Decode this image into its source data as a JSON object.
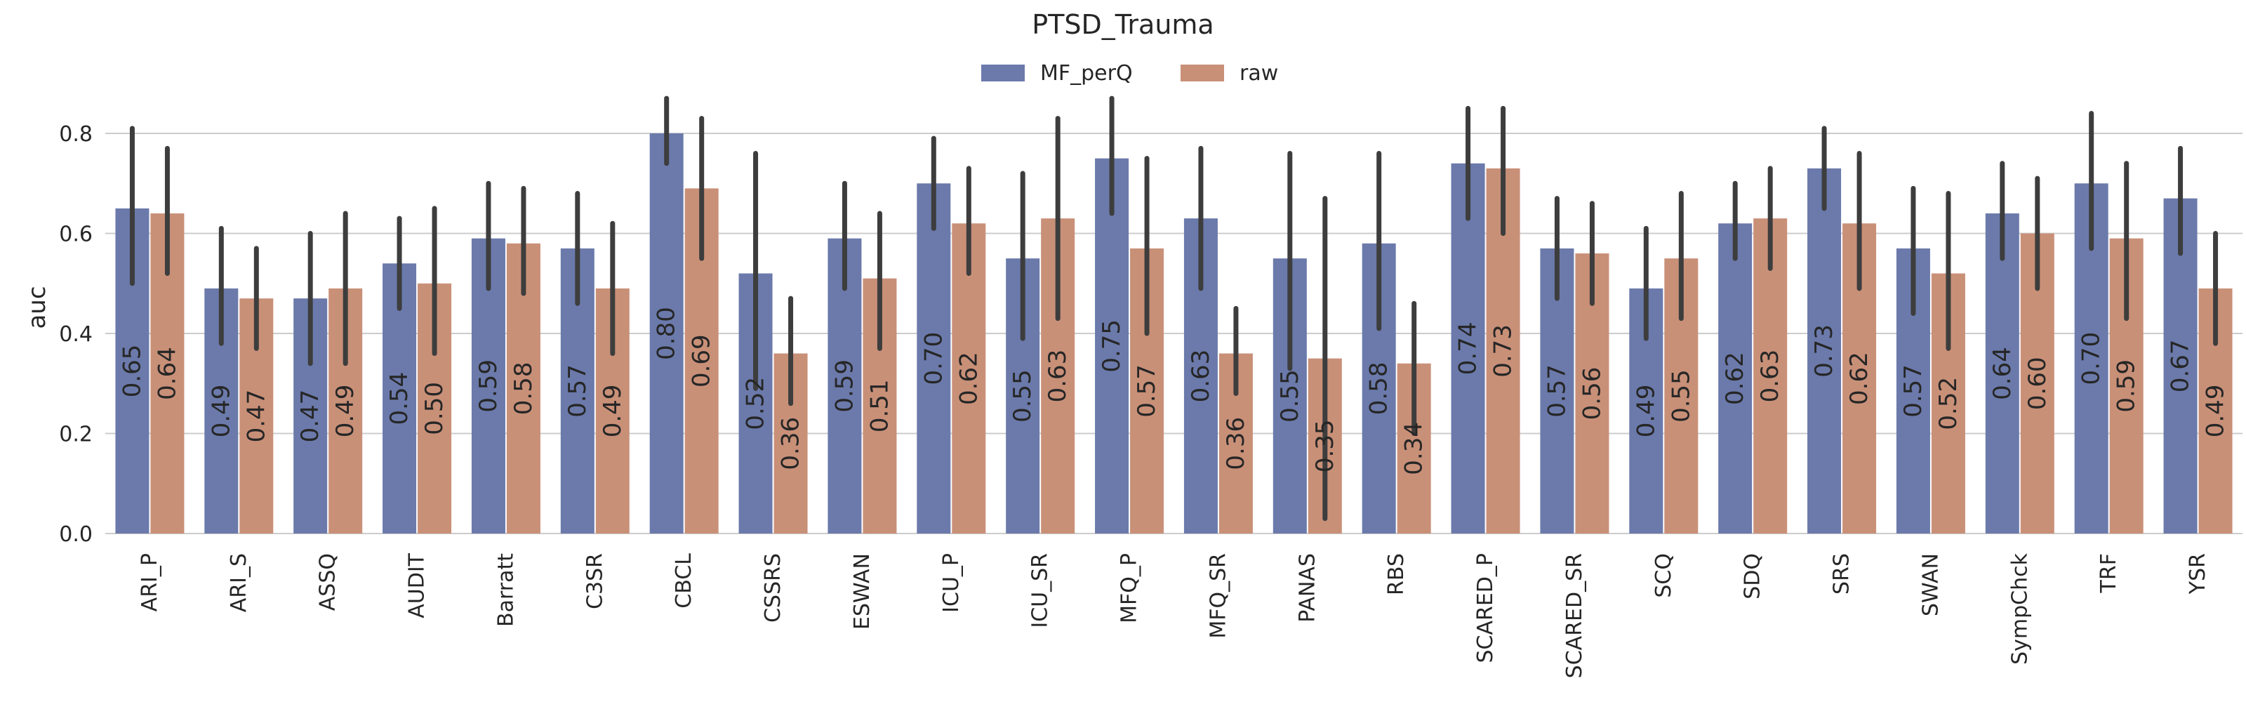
{
  "chart_data": {
    "type": "bar",
    "title": "PTSD_Trauma",
    "xlabel": "",
    "ylabel": "auc",
    "ylim": [
      0,
      0.9
    ],
    "yticks": [
      "0.0",
      "0.2",
      "0.4",
      "0.6",
      "0.8"
    ],
    "grid": true,
    "legend_position": "top-center",
    "categories": [
      "ARI_P",
      "ARI_S",
      "ASSQ",
      "AUDIT",
      "Barratt",
      "C3SR",
      "CBCL",
      "CSSRS",
      "ESWAN",
      "ICU_P",
      "ICU_SR",
      "MFQ_P",
      "MFQ_SR",
      "PANAS",
      "RBS",
      "SCARED_P",
      "SCARED_SR",
      "SCQ",
      "SDQ",
      "SRS",
      "SWAN",
      "SympChck",
      "TRF",
      "YSR"
    ],
    "series": [
      {
        "name": "MF_perQ",
        "color": "#6b7aab",
        "values": [
          0.65,
          0.49,
          0.47,
          0.54,
          0.59,
          0.57,
          0.8,
          0.52,
          0.59,
          0.7,
          0.55,
          0.75,
          0.63,
          0.55,
          0.58,
          0.74,
          0.57,
          0.49,
          0.62,
          0.73,
          0.57,
          0.64,
          0.7,
          0.67
        ],
        "labels": [
          "0.65",
          "0.49",
          "0.47",
          "0.54",
          "0.59",
          "0.57",
          "0.80",
          "0.52",
          "0.59",
          "0.70",
          "0.55",
          "0.75",
          "0.63",
          "0.55",
          "0.58",
          "0.74",
          "0.57",
          "0.49",
          "0.62",
          "0.73",
          "0.57",
          "0.64",
          "0.70",
          "0.67"
        ],
        "ci": [
          [
            0.5,
            0.81
          ],
          [
            0.38,
            0.61
          ],
          [
            0.34,
            0.6
          ],
          [
            0.45,
            0.63
          ],
          [
            0.49,
            0.7
          ],
          [
            0.46,
            0.68
          ],
          [
            0.74,
            0.87
          ],
          [
            0.29,
            0.76
          ],
          [
            0.49,
            0.7
          ],
          [
            0.61,
            0.79
          ],
          [
            0.39,
            0.72
          ],
          [
            0.64,
            0.87
          ],
          [
            0.49,
            0.77
          ],
          [
            0.33,
            0.76
          ],
          [
            0.41,
            0.76
          ],
          [
            0.63,
            0.85
          ],
          [
            0.47,
            0.67
          ],
          [
            0.39,
            0.61
          ],
          [
            0.55,
            0.7
          ],
          [
            0.65,
            0.81
          ],
          [
            0.44,
            0.69
          ],
          [
            0.55,
            0.74
          ],
          [
            0.57,
            0.84
          ],
          [
            0.56,
            0.77
          ]
        ]
      },
      {
        "name": "raw",
        "color": "#c99078",
        "values": [
          0.64,
          0.47,
          0.49,
          0.5,
          0.58,
          0.49,
          0.69,
          0.36,
          0.51,
          0.62,
          0.63,
          0.57,
          0.36,
          0.35,
          0.34,
          0.73,
          0.56,
          0.55,
          0.63,
          0.62,
          0.52,
          0.6,
          0.59,
          0.49
        ],
        "labels": [
          "0.64",
          "0.47",
          "0.49",
          "0.50",
          "0.58",
          "0.49",
          "0.69",
          "0.36",
          "0.51",
          "0.62",
          "0.63",
          "0.57",
          "0.36",
          "0.35",
          "0.34",
          "0.73",
          "0.56",
          "0.55",
          "0.63",
          "0.62",
          "0.52",
          "0.60",
          "0.59",
          "0.49"
        ],
        "ci": [
          [
            0.52,
            0.77
          ],
          [
            0.37,
            0.57
          ],
          [
            0.34,
            0.64
          ],
          [
            0.36,
            0.65
          ],
          [
            0.48,
            0.69
          ],
          [
            0.36,
            0.62
          ],
          [
            0.55,
            0.83
          ],
          [
            0.26,
            0.47
          ],
          [
            0.37,
            0.64
          ],
          [
            0.52,
            0.73
          ],
          [
            0.43,
            0.83
          ],
          [
            0.4,
            0.75
          ],
          [
            0.28,
            0.45
          ],
          [
            0.03,
            0.67
          ],
          [
            0.2,
            0.46
          ],
          [
            0.6,
            0.85
          ],
          [
            0.46,
            0.66
          ],
          [
            0.43,
            0.68
          ],
          [
            0.53,
            0.73
          ],
          [
            0.49,
            0.76
          ],
          [
            0.37,
            0.68
          ],
          [
            0.49,
            0.71
          ],
          [
            0.43,
            0.74
          ],
          [
            0.38,
            0.6
          ]
        ]
      }
    ]
  }
}
